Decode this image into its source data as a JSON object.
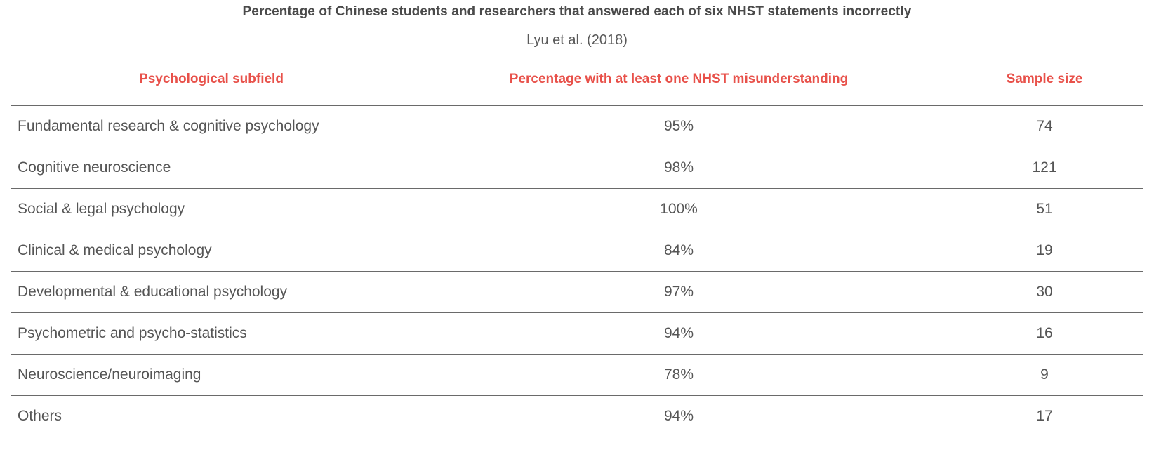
{
  "title": "Percentage of Chinese students and researchers that answered each of six NHST statements incorrectly",
  "subtitle": "Lyu et al. (2018)",
  "table": {
    "headers": [
      "Psychological subfield",
      "Percentage with at least one NHST misunderstanding",
      "Sample size"
    ],
    "rows": [
      [
        "Fundamental research & cognitive psychology",
        "95%",
        "74"
      ],
      [
        "Cognitive neuroscience",
        "98%",
        "121"
      ],
      [
        "Social & legal psychology",
        "100%",
        "51"
      ],
      [
        "Clinical & medical psychology",
        "84%",
        "19"
      ],
      [
        "Developmental & educational psychology",
        "97%",
        "30"
      ],
      [
        "Psychometric and psycho-statistics",
        "94%",
        "16"
      ],
      [
        "Neuroscience/neuroimaging",
        "78%",
        "9"
      ],
      [
        "Others",
        "94%",
        "17"
      ]
    ]
  },
  "colors": {
    "header_text": "#e8514a",
    "body_text": "#555555",
    "rule": "#6a6a6a"
  }
}
